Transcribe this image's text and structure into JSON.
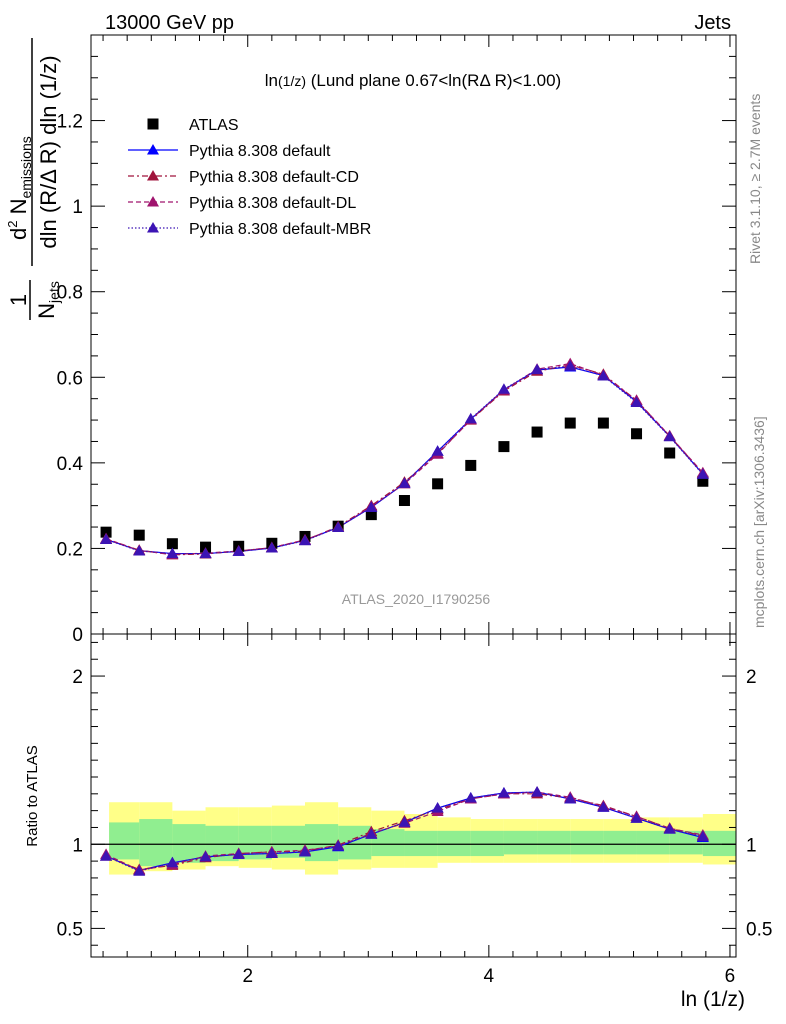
{
  "header": {
    "left": "13000 GeV pp",
    "right": "Jets"
  },
  "side_labels": {
    "rivet": "Rivet 3.1.10, ≥ 2.7M events",
    "mcplots": "mcplots.cern.ch [arXiv:1306.3436]"
  },
  "watermark": "ATLAS_2020_I1790256",
  "chart_data": [
    {
      "type": "scatter",
      "title_main": "ln",
      "title_paren": "(1/z)",
      "title_rest": " (Lund plane 0.67<ln(RΔ R)<1.00)",
      "xlabel": "ln (1/z)",
      "ylabel_parts": {
        "one": "1",
        "n": "N",
        "jets": "jets",
        "num_d": "d",
        "num_exp": "2",
        "num_N": " N",
        "num_sub": "emissions",
        "den": "dln (R/Δ R) dln (1/z)"
      },
      "xlim": [
        0.7,
        6.05
      ],
      "ylim": [
        0,
        1.4
      ],
      "x_ticks": [
        2,
        4,
        6
      ],
      "y_ticks": [
        0,
        0.2,
        0.4,
        0.6,
        0.8,
        1,
        1.2
      ],
      "y_tick_labels": [
        "0",
        "0.2",
        "0.4",
        "0.6",
        "0.8",
        "1",
        "1.2"
      ],
      "x": [
        0.825,
        1.1,
        1.375,
        1.65,
        1.925,
        2.2,
        2.475,
        2.75,
        3.025,
        3.3,
        3.575,
        3.85,
        4.125,
        4.4,
        4.675,
        4.95,
        5.225,
        5.5,
        5.775
      ],
      "series": [
        {
          "name": "ATLAS",
          "marker": "square",
          "color": "#000000",
          "dash": "",
          "values": [
            0.238,
            0.231,
            0.211,
            0.203,
            0.205,
            0.212,
            0.228,
            0.252,
            0.279,
            0.312,
            0.351,
            0.394,
            0.438,
            0.472,
            0.493,
            0.493,
            0.468,
            0.423,
            0.357
          ]
        },
        {
          "name": "Pythia 8.308 default",
          "marker": "triangle",
          "color": "#0000ff",
          "dash": "",
          "values": [
            0.221,
            0.195,
            0.188,
            0.188,
            0.193,
            0.201,
            0.219,
            0.249,
            0.296,
            0.352,
            0.427,
            0.502,
            0.571,
            0.617,
            0.624,
            0.604,
            0.543,
            0.462,
            0.374
          ]
        },
        {
          "name": "Pythia 8.308 default-CD",
          "marker": "triangle",
          "color": "#a0143c",
          "dash": "6,3,2,3",
          "values": [
            0.222,
            0.196,
            0.185,
            0.187,
            0.194,
            0.202,
            0.219,
            0.251,
            0.3,
            0.355,
            0.422,
            0.5,
            0.568,
            0.614,
            0.629,
            0.607,
            0.546,
            0.463,
            0.376
          ]
        },
        {
          "name": "Pythia 8.308 default-DL",
          "marker": "triangle",
          "color": "#a0146e",
          "dash": "5,3",
          "values": [
            0.223,
            0.195,
            0.186,
            0.189,
            0.194,
            0.202,
            0.22,
            0.249,
            0.298,
            0.351,
            0.42,
            0.501,
            0.57,
            0.619,
            0.632,
            0.605,
            0.546,
            0.463,
            0.377
          ]
        },
        {
          "name": "Pythia 8.308 default-MBR",
          "marker": "triangle",
          "color": "#3c14b4",
          "dash": "1.5,2",
          "values": [
            0.221,
            0.194,
            0.188,
            0.188,
            0.193,
            0.201,
            0.218,
            0.249,
            0.296,
            0.352,
            0.427,
            0.503,
            0.572,
            0.618,
            0.626,
            0.603,
            0.541,
            0.461,
            0.373
          ]
        }
      ],
      "legend_position": "top-left",
      "grid": false
    },
    {
      "type": "line",
      "ylabel": "Ratio to ATLAS",
      "xlim": [
        0.7,
        6.05
      ],
      "ylim": [
        0.33,
        2.25
      ],
      "x_ticks": [
        2,
        4,
        6
      ],
      "y_ticks": [
        0.5,
        1,
        2
      ],
      "y_tick_labels": [
        "0.5",
        "1",
        "2"
      ],
      "x_edges": [
        0.7,
        0.95,
        1.225,
        1.5,
        1.775,
        2.05,
        2.325,
        2.6,
        2.875,
        3.15,
        3.425,
        3.7,
        3.975,
        4.25,
        4.525,
        4.8,
        5.075,
        5.35,
        5.625,
        5.9
      ],
      "band_inner": [
        [
          0.91,
          1.13
        ],
        [
          0.87,
          1.15
        ],
        [
          0.89,
          1.12
        ],
        [
          0.9,
          1.11
        ],
        [
          0.91,
          1.11
        ],
        [
          0.92,
          1.11
        ],
        [
          0.9,
          1.12
        ],
        [
          0.91,
          1.11
        ],
        [
          0.93,
          1.09
        ],
        [
          0.93,
          1.08
        ],
        [
          0.93,
          1.08
        ],
        [
          0.93,
          1.08
        ],
        [
          0.94,
          1.08
        ],
        [
          0.94,
          1.08
        ],
        [
          0.94,
          1.08
        ],
        [
          0.94,
          1.08
        ],
        [
          0.94,
          1.08
        ],
        [
          0.94,
          1.08
        ],
        [
          0.93,
          1.08
        ]
      ],
      "band_outer": [
        [
          0.82,
          1.25
        ],
        [
          0.84,
          1.25
        ],
        [
          0.85,
          1.2
        ],
        [
          0.87,
          1.22
        ],
        [
          0.86,
          1.22
        ],
        [
          0.85,
          1.23
        ],
        [
          0.82,
          1.25
        ],
        [
          0.85,
          1.22
        ],
        [
          0.86,
          1.2
        ],
        [
          0.86,
          1.18
        ],
        [
          0.89,
          1.16
        ],
        [
          0.89,
          1.15
        ],
        [
          0.89,
          1.15
        ],
        [
          0.89,
          1.15
        ],
        [
          0.89,
          1.15
        ],
        [
          0.89,
          1.15
        ],
        [
          0.89,
          1.16
        ],
        [
          0.89,
          1.16
        ],
        [
          0.88,
          1.18
        ]
      ],
      "series": [
        {
          "name": "Pythia 8.308 default",
          "values": [
            0.93,
            0.845,
            0.89,
            0.925,
            0.94,
            0.945,
            0.955,
            0.985,
            1.06,
            1.13,
            1.215,
            1.275,
            1.305,
            1.31,
            1.27,
            1.22,
            1.155,
            1.09,
            1.04
          ]
        },
        {
          "name": "Pythia 8.308 default-CD",
          "values": [
            0.93,
            0.85,
            0.875,
            0.92,
            0.945,
            0.955,
            0.96,
            0.995,
            1.075,
            1.14,
            1.205,
            1.27,
            1.3,
            1.3,
            1.275,
            1.23,
            1.165,
            1.095,
            1.05
          ]
        },
        {
          "name": "Pythia 8.308 default-DL",
          "values": [
            0.94,
            0.845,
            0.88,
            0.93,
            0.945,
            0.955,
            0.965,
            0.99,
            1.065,
            1.125,
            1.195,
            1.27,
            1.3,
            1.31,
            1.28,
            1.225,
            1.165,
            1.095,
            1.055
          ]
        },
        {
          "name": "Pythia 8.308 default-MBR",
          "values": [
            0.93,
            0.84,
            0.89,
            0.925,
            0.94,
            0.945,
            0.955,
            0.99,
            1.06,
            1.13,
            1.215,
            1.275,
            1.305,
            1.31,
            1.27,
            1.22,
            1.155,
            1.09,
            1.045
          ]
        }
      ],
      "band_colors": {
        "outer": "#ffff88",
        "inner": "#90ee90"
      }
    }
  ]
}
